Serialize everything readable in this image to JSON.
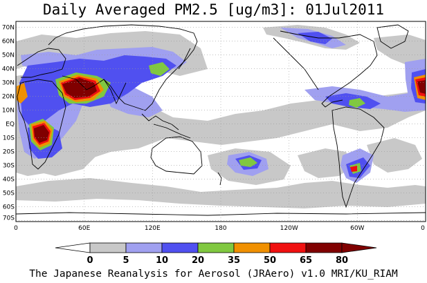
{
  "title": "Daily Averaged PM2.5 [ug/m3]: 01Jul2011",
  "credit": "The Japanese Reanalysis for Aerosol (JRAero) v1.0 MRI/KU_RIAM",
  "lat_labels": [
    "70N",
    "60N",
    "50N",
    "40N",
    "30N",
    "20N",
    "10N",
    "EQ",
    "10S",
    "20S",
    "30S",
    "40S",
    "50S",
    "60S",
    "70S"
  ],
  "lon_labels": [
    "0",
    "60E",
    "120E",
    "180",
    "120W",
    "60W",
    "0"
  ],
  "colorbar": {
    "labels": [
      "0",
      "5",
      "10",
      "20",
      "35",
      "50",
      "65",
      "80"
    ],
    "colors": [
      "#ffffff",
      "#c8c8c8",
      "#a0a0f0",
      "#5050f0",
      "#80c840",
      "#f09000",
      "#f01010",
      "#800000"
    ]
  },
  "colors": {
    "land": "#ffffff",
    "coast": "#000000",
    "grid": "#999999"
  }
}
